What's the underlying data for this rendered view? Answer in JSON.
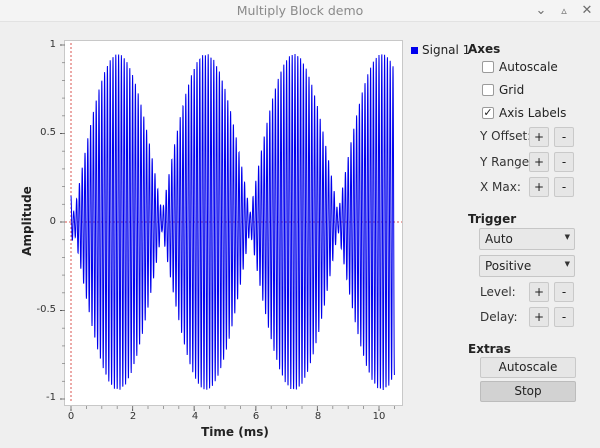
{
  "window": {
    "title": "Multiply Block demo"
  },
  "window_controls": {
    "minimize": "⌄",
    "maximize": "▵",
    "close": "✕"
  },
  "plot": {
    "xlabel": "Time (ms)",
    "ylabel": "Amplitude",
    "xticks": [
      "0",
      "2",
      "4",
      "6",
      "8",
      "10"
    ],
    "yticks": [
      "1",
      "0.5",
      "0",
      "-0.5",
      "-1"
    ],
    "legend": "Signal 1",
    "series_color": "#0000ee",
    "trigger_line_color": "#d9534f"
  },
  "chart_data": {
    "type": "line",
    "series": [
      {
        "name": "Signal 1",
        "carrier_freq_khz": 11.0,
        "envelope_freq_khz": 0.175,
        "amplitude": 0.95,
        "floor_amplitude": 0.05
      }
    ],
    "x_range": [
      0,
      10.5
    ],
    "ylim": [
      -1,
      1
    ],
    "xlabel": "Time (ms)",
    "ylabel": "Amplitude",
    "xticks": [
      0,
      2,
      4,
      6,
      8,
      10
    ],
    "yticks": [
      -1,
      -0.5,
      0,
      0.5,
      1
    ],
    "legend_placement": "top-right",
    "grid": false
  },
  "panel": {
    "axes": {
      "title": "Axes",
      "autoscale": {
        "label": "Autoscale",
        "checked": false
      },
      "grid": {
        "label": "Grid",
        "checked": false
      },
      "axis_labels": {
        "label": "Axis Labels",
        "checked": true
      },
      "y_offset": "Y Offset:",
      "y_range": "Y Range:",
      "x_max": "X Max:",
      "plus": "+",
      "minus": "-"
    },
    "trigger": {
      "title": "Trigger",
      "mode": "Auto",
      "slope": "Positive",
      "level": "Level:",
      "delay": "Delay:"
    },
    "extras": {
      "title": "Extras",
      "autoscale_button": "Autoscale",
      "stop_button": "Stop"
    }
  }
}
